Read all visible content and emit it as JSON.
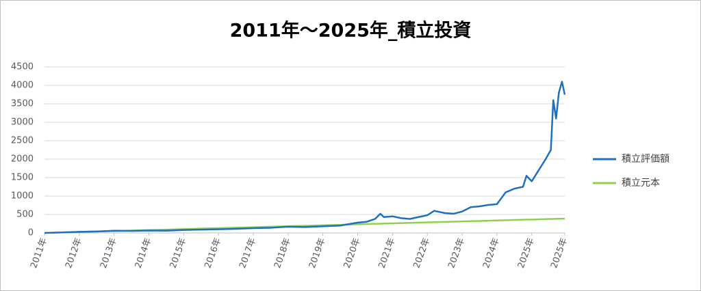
{
  "chart_data": {
    "type": "line",
    "title": "2011年～2025年_積立投資",
    "x": [
      2011,
      2011.5,
      2012,
      2012.5,
      2013,
      2013.5,
      2014,
      2014.5,
      2015,
      2015.5,
      2016,
      2016.5,
      2017,
      2017.5,
      2018,
      2018.5,
      2019,
      2019.5,
      2020,
      2020.25,
      2020.5,
      2020.65,
      2020.75,
      2021,
      2021.25,
      2021.5,
      2021.75,
      2022,
      2022.2,
      2022.5,
      2022.75,
      2023,
      2023.25,
      2023.5,
      2023.75,
      2024,
      2024.25,
      2024.5,
      2024.75,
      2024.85,
      2025,
      2025.2,
      2025.4,
      2025.55,
      2025.62,
      2025.7,
      2025.78,
      2025.87,
      2025.95
    ],
    "series": [
      {
        "name": "積立評価額",
        "color": "#1f6fbf",
        "values": [
          0,
          15,
          30,
          40,
          60,
          55,
          65,
          60,
          80,
          90,
          100,
          110,
          130,
          140,
          170,
          160,
          180,
          200,
          280,
          300,
          380,
          520,
          430,
          450,
          400,
          380,
          430,
          480,
          600,
          540,
          520,
          580,
          700,
          720,
          760,
          780,
          1100,
          1200,
          1250,
          1550,
          1400,
          1700,
          2000,
          2250,
          3600,
          3100,
          3800,
          4100,
          3750
        ]
      },
      {
        "name": "積立元本",
        "color": "#8fd14f",
        "values": [
          0,
          13,
          26,
          39,
          52,
          65,
          78,
          91,
          104,
          117,
          130,
          143,
          156,
          169,
          182,
          195,
          208,
          221,
          234,
          241,
          247,
          251,
          254,
          260,
          267,
          273,
          280,
          286,
          291,
          299,
          306,
          312,
          319,
          325,
          332,
          338,
          345,
          351,
          358,
          360,
          364,
          369,
          374,
          378,
          380,
          382,
          384,
          387,
          389
        ]
      }
    ],
    "xlim": [
      2011,
      2025.95
    ],
    "xticks": [
      {
        "value": 2011,
        "label": "2011年"
      },
      {
        "value": 2012,
        "label": "2012年"
      },
      {
        "value": 2013,
        "label": "2013年"
      },
      {
        "value": 2014,
        "label": "2014年"
      },
      {
        "value": 2015,
        "label": "2015年"
      },
      {
        "value": 2016,
        "label": "2016年"
      },
      {
        "value": 2017,
        "label": "2017年"
      },
      {
        "value": 2018,
        "label": "2018年"
      },
      {
        "value": 2019,
        "label": "2019年"
      },
      {
        "value": 2020,
        "label": "2020年"
      },
      {
        "value": 2021,
        "label": "2021年"
      },
      {
        "value": 2022,
        "label": "2022年"
      },
      {
        "value": 2023,
        "label": "2023年"
      },
      {
        "value": 2024,
        "label": "2024年"
      },
      {
        "value": 2025,
        "label": "2025年"
      },
      {
        "value": 2025.95,
        "label": "2025年"
      }
    ],
    "ylim": [
      0,
      4500
    ],
    "yticks": [
      0,
      500,
      1000,
      1500,
      2000,
      2500,
      3000,
      3500,
      4000,
      4500
    ],
    "grid": true,
    "legend": "right"
  }
}
